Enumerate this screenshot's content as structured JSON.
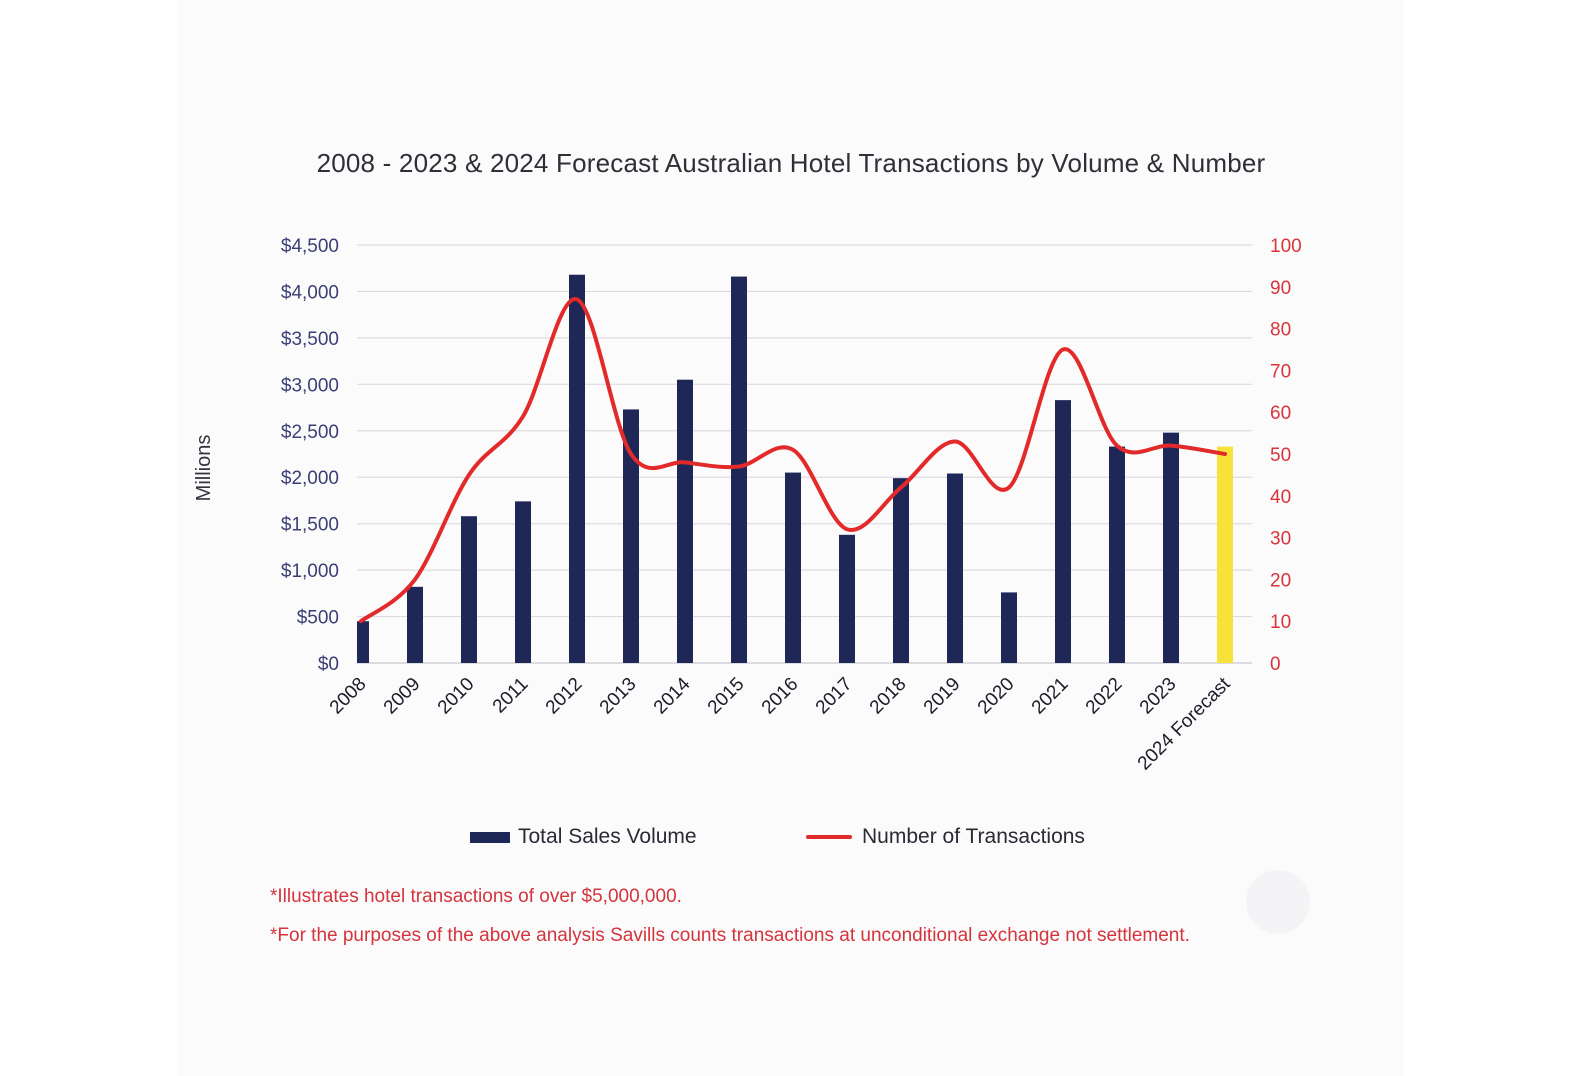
{
  "title": "2008 - 2023 & 2024 Forecast Australian Hotel Transactions by Volume & Number",
  "chart_data": {
    "type": "bar",
    "title": "2008 - 2023 & 2024 Forecast Australian Hotel Transactions by Volume & Number",
    "ylabel": "Millions",
    "categories": [
      "2008",
      "2009",
      "2010",
      "2011",
      "2012",
      "2013",
      "2014",
      "2015",
      "2016",
      "2017",
      "2018",
      "2019",
      "2020",
      "2021",
      "2022",
      "2023",
      "2024 Forecast"
    ],
    "series": [
      {
        "name": "Total Sales Volume",
        "type": "bar",
        "axis": "left",
        "color": "#1f2756",
        "highlight_color": "#f7e23c",
        "highlight_index": 16,
        "values": [
          450,
          820,
          1580,
          1740,
          4180,
          2730,
          3050,
          4160,
          2050,
          1380,
          1990,
          2040,
          760,
          2830,
          2330,
          2480,
          2330
        ]
      },
      {
        "name": "Number of Transactions",
        "type": "line",
        "axis": "right",
        "color": "#e32a2a",
        "values": [
          10,
          20,
          45,
          59,
          87,
          50,
          48,
          47,
          51,
          32,
          42,
          53,
          42,
          75,
          52,
          52,
          50
        ]
      }
    ],
    "y_left": {
      "ylim": [
        0,
        4500
      ],
      "ticks": [
        0,
        500,
        1000,
        1500,
        2000,
        2500,
        3000,
        3500,
        4000,
        4500
      ],
      "tick_labels": [
        "$0",
        "$500",
        "$1,000",
        "$1,500",
        "$2,000",
        "$2,500",
        "$3,000",
        "$3,500",
        "$4,000",
        "$4,500"
      ]
    },
    "y_right": {
      "ylim": [
        0,
        100
      ],
      "ticks": [
        0,
        10,
        20,
        30,
        40,
        50,
        60,
        70,
        80,
        90,
        100
      ],
      "tick_labels": [
        "0",
        "10",
        "20",
        "30",
        "40",
        "50",
        "60",
        "70",
        "80",
        "90",
        "100"
      ]
    },
    "grid": true,
    "legend_position": "bottom"
  },
  "legend": {
    "bar_label": "Total Sales Volume",
    "line_label": "Number of Transactions"
  },
  "footnotes": [
    "*Illustrates hotel transactions of over $5,000,000.",
    "*For the purposes of the above analysis Savills counts transactions at unconditional exchange not settlement."
  ]
}
